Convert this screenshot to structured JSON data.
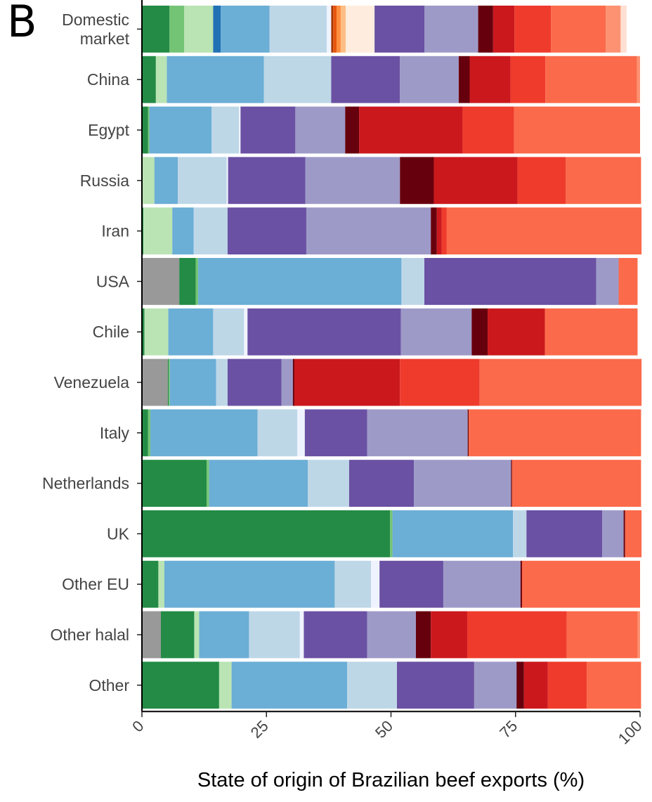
{
  "panel_label": "B",
  "chart_data": {
    "type": "bar",
    "orientation": "horizontal",
    "stacked": true,
    "xlabel": "State of origin of Brazilian beef exports (%)",
    "xlim": [
      0,
      100
    ],
    "xticks": [
      "0",
      "25",
      "50",
      "75",
      "100"
    ],
    "categories": [
      "Domestic market",
      "China",
      "Egypt",
      "Russia",
      "Iran",
      "USA",
      "Chile",
      "Venezuela",
      "Italy",
      "Netherlands",
      "UK",
      "Other EU",
      "Other halal",
      "Other"
    ],
    "category_lines": [
      [
        "Domestic",
        "market"
      ],
      [
        "China"
      ],
      [
        "Egypt"
      ],
      [
        "Russia"
      ],
      [
        "Iran"
      ],
      [
        "USA"
      ],
      [
        "Chile"
      ],
      [
        "Venezuela"
      ],
      [
        "Italy"
      ],
      [
        "Netherlands"
      ],
      [
        "UK"
      ],
      [
        "Other EU"
      ],
      [
        "Other halal"
      ],
      [
        "Other"
      ]
    ],
    "series_colors": [
      "#999999",
      "#238b45",
      "#74c476",
      "#bae4b3",
      "#2171b5",
      "#6baed6",
      "#bdd7e7",
      "#eff3ff",
      "#a63603",
      "#e6550d",
      "#fd8d3c",
      "#fdbe85",
      "#feedde",
      "#6a51a3",
      "#9e9ac8",
      "#dadaeb",
      "#67000d",
      "#cb181d",
      "#ef3b2c",
      "#fb6a4a",
      "#fc9272",
      "#fee0d2"
    ],
    "series": [
      {
        "values": [
          0,
          0,
          0,
          0,
          0,
          7.5,
          0,
          5.2,
          0,
          0,
          0,
          0,
          3.8,
          0
        ]
      },
      {
        "values": [
          5.5,
          2.8,
          1.2,
          0,
          0.3,
          3.3,
          0.5,
          0.2,
          1.2,
          13,
          49.8,
          3.3,
          6.7,
          15.5
        ]
      },
      {
        "values": [
          3.0,
          0,
          0.3,
          0,
          0,
          0.5,
          0,
          0.2,
          0.5,
          0.5,
          0.5,
          0,
          0,
          0
        ]
      },
      {
        "values": [
          5.8,
          2.2,
          0,
          2.5,
          5.8,
          0,
          4.8,
          0,
          0,
          0,
          0,
          1.2,
          1.0,
          2.5
        ]
      },
      {
        "values": [
          1.5,
          0,
          0,
          0,
          0,
          0,
          0,
          0,
          0,
          0,
          0,
          0,
          0,
          0
        ]
      },
      {
        "values": [
          9.8,
          19.5,
          12.5,
          4.7,
          4.3,
          40.8,
          9.0,
          9.3,
          21.5,
          19.8,
          24.2,
          34.2,
          10.0,
          23.2
        ]
      },
      {
        "values": [
          11.5,
          13.5,
          5.5,
          9.8,
          6.8,
          4.6,
          6.2,
          2.3,
          8.0,
          8.3,
          2.7,
          7.3,
          10.2,
          10.0
        ]
      },
      {
        "values": [
          0.9,
          0,
          0.3,
          0.3,
          0,
          0,
          0.7,
          0,
          1.5,
          0,
          0,
          1.7,
          0.8,
          0
        ]
      },
      {
        "values": [
          0.4,
          0,
          0,
          0,
          0,
          0,
          0,
          0,
          0,
          0,
          0,
          0,
          0,
          0
        ]
      },
      {
        "values": [
          0.7,
          0,
          0,
          0,
          0,
          0,
          0,
          0,
          0,
          0,
          0,
          0,
          0,
          0
        ]
      },
      {
        "values": [
          0.8,
          0,
          0,
          0,
          0,
          0,
          0,
          0,
          0,
          0,
          0,
          0,
          0,
          0
        ]
      },
      {
        "values": [
          1.0,
          0,
          0,
          0,
          0,
          0,
          0,
          0,
          0,
          0,
          0,
          0,
          0,
          0
        ]
      },
      {
        "values": [
          5.8,
          0,
          0,
          0,
          0,
          0,
          0,
          0,
          0,
          0,
          0,
          0,
          0,
          0
        ]
      },
      {
        "values": [
          10.0,
          13.8,
          11.0,
          15.5,
          15.8,
          34.5,
          30.8,
          10.8,
          12.5,
          13.0,
          15.2,
          12.8,
          12.7,
          15.5
        ]
      },
      {
        "values": [
          10.8,
          11.8,
          10.0,
          19.0,
          25.0,
          4.5,
          14.2,
          2.3,
          20.2,
          19.5,
          4.3,
          15.5,
          9.8,
          8.5
        ]
      },
      {
        "values": [
          0,
          0,
          0,
          0,
          0,
          0,
          0,
          0,
          0,
          0,
          0,
          0,
          0,
          0
        ]
      },
      {
        "values": [
          3.0,
          2.2,
          2.8,
          6.8,
          1.2,
          0,
          3.2,
          0.3,
          0.2,
          0.2,
          0.3,
          0.3,
          3.0,
          1.5
        ]
      },
      {
        "values": [
          4.3,
          8.2,
          20.8,
          16.8,
          1.0,
          0,
          11.5,
          21.2,
          0,
          0,
          0,
          0,
          7.3,
          4.8
        ]
      },
      {
        "values": [
          7.3,
          7.0,
          10.3,
          9.7,
          1.0,
          0,
          0,
          16.0,
          0,
          0,
          0,
          0,
          20.0,
          7.8
        ]
      },
      {
        "values": [
          11.0,
          18.4,
          25.3,
          15.1,
          39.1,
          3.8,
          18.6,
          32.5,
          34.6,
          25.9,
          3.3,
          23.7,
          14.2,
          10.9
        ]
      },
      {
        "values": [
          3.0,
          0.6,
          0,
          0,
          0,
          0,
          0,
          0,
          0,
          0,
          0,
          0,
          0.5,
          0
        ]
      },
      {
        "values": [
          1.2,
          0,
          0,
          0,
          0,
          0,
          0,
          0,
          0,
          0,
          0,
          0,
          0,
          0
        ]
      }
    ]
  }
}
